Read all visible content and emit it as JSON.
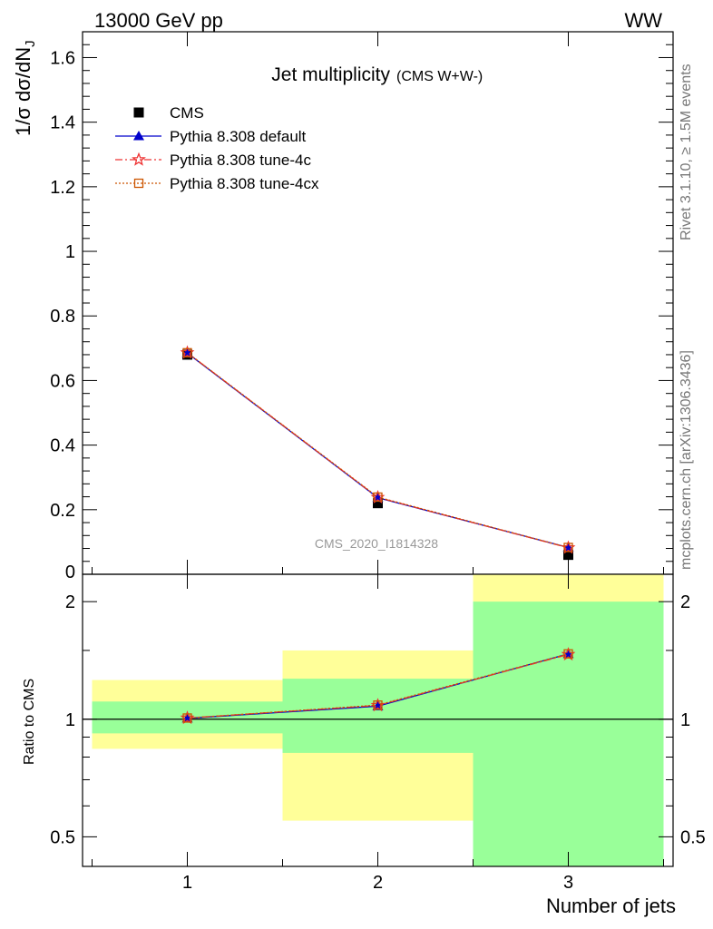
{
  "header": {
    "energy_label": "13000 GeV pp",
    "process_label": "WW"
  },
  "side_labels": {
    "rivet": "Rivet 3.1.10, ≥ 1.5M events",
    "mcplots": "mcplots.cern.ch [arXiv:1306.3436]"
  },
  "chart_data": [
    {
      "type": "line",
      "title": "Jet multiplicity",
      "subtitle": "(CMS W+W-)",
      "watermark": "CMS_2020_I1814328",
      "xlabel": "Number of jets",
      "ylabel": "1/σ dσ/dN",
      "ylabel_sub": "J",
      "xlim": [
        0.45,
        3.55
      ],
      "ylim": [
        0,
        1.68
      ],
      "yticks": [
        0.2,
        0.4,
        0.6,
        0.8,
        1,
        1.2,
        1.4,
        1.6
      ],
      "ytick_labels": [
        "0.2",
        "0.4",
        "0.6",
        "0.8",
        "1",
        "1.2",
        "1.4",
        "1.6"
      ],
      "y_zero_label": "0",
      "xticks": [
        1,
        2,
        3
      ],
      "legend_position": "top-left",
      "data": {
        "name": "CMS",
        "x": [
          1,
          2,
          3
        ],
        "y": [
          0.68,
          0.22,
          0.06
        ]
      },
      "series": [
        {
          "name": "Pythia 8.308 default",
          "x": [
            1,
            2,
            3
          ],
          "y": [
            0.685,
            0.237,
            0.083
          ],
          "color": "#0000cc",
          "marker": "triangle",
          "dash": ""
        },
        {
          "name": "Pythia 8.308 tune-4c",
          "x": [
            1,
            2,
            3
          ],
          "y": [
            0.686,
            0.238,
            0.082
          ],
          "color": "#ee3333",
          "marker": "star",
          "dash": "8,3,2,3"
        },
        {
          "name": "Pythia 8.308 tune-4cx",
          "x": [
            1,
            2,
            3
          ],
          "y": [
            0.686,
            0.239,
            0.083
          ],
          "color": "#cc5500",
          "marker": "square",
          "dash": "2,2"
        }
      ]
    },
    {
      "type": "line",
      "ylabel": "Ratio to CMS",
      "scale": "log",
      "ylim": [
        0.42,
        2.35
      ],
      "yticks": [
        0.5,
        1,
        2
      ],
      "ytick_labels": [
        "0.5",
        "1",
        "2"
      ],
      "xticks": [
        1,
        2,
        3
      ],
      "xtick_labels": [
        "1",
        "2",
        "3"
      ],
      "xlabel": "Number of jets",
      "bins": [
        {
          "x": [
            0.5,
            1.5
          ],
          "band_stat": [
            0.92,
            1.11
          ],
          "band_total": [
            0.84,
            1.26
          ]
        },
        {
          "x": [
            1.5,
            2.5
          ],
          "band_stat": [
            0.82,
            1.27
          ],
          "band_total": [
            0.55,
            1.5
          ]
        },
        {
          "x": [
            2.5,
            3.5
          ],
          "band_stat": [
            0.3,
            2.0
          ],
          "band_total": [
            0.3,
            3.0
          ]
        }
      ],
      "band_colors": {
        "stat": "#99ff99",
        "total": "#ffff99"
      },
      "series": [
        {
          "name": "Pythia 8.308 default",
          "x": [
            1,
            2,
            3
          ],
          "y": [
            1.005,
            1.08,
            1.47
          ],
          "color": "#0000cc",
          "marker": "triangle",
          "dash": ""
        },
        {
          "name": "Pythia 8.308 tune-4c",
          "x": [
            1,
            2,
            3
          ],
          "y": [
            1.007,
            1.085,
            1.465
          ],
          "color": "#ee3333",
          "marker": "star",
          "dash": "8,3,2,3"
        },
        {
          "name": "Pythia 8.308 tune-4cx",
          "x": [
            1,
            2,
            3
          ],
          "y": [
            1.007,
            1.087,
            1.47
          ],
          "color": "#cc5500",
          "marker": "square",
          "dash": "2,2"
        }
      ]
    }
  ]
}
